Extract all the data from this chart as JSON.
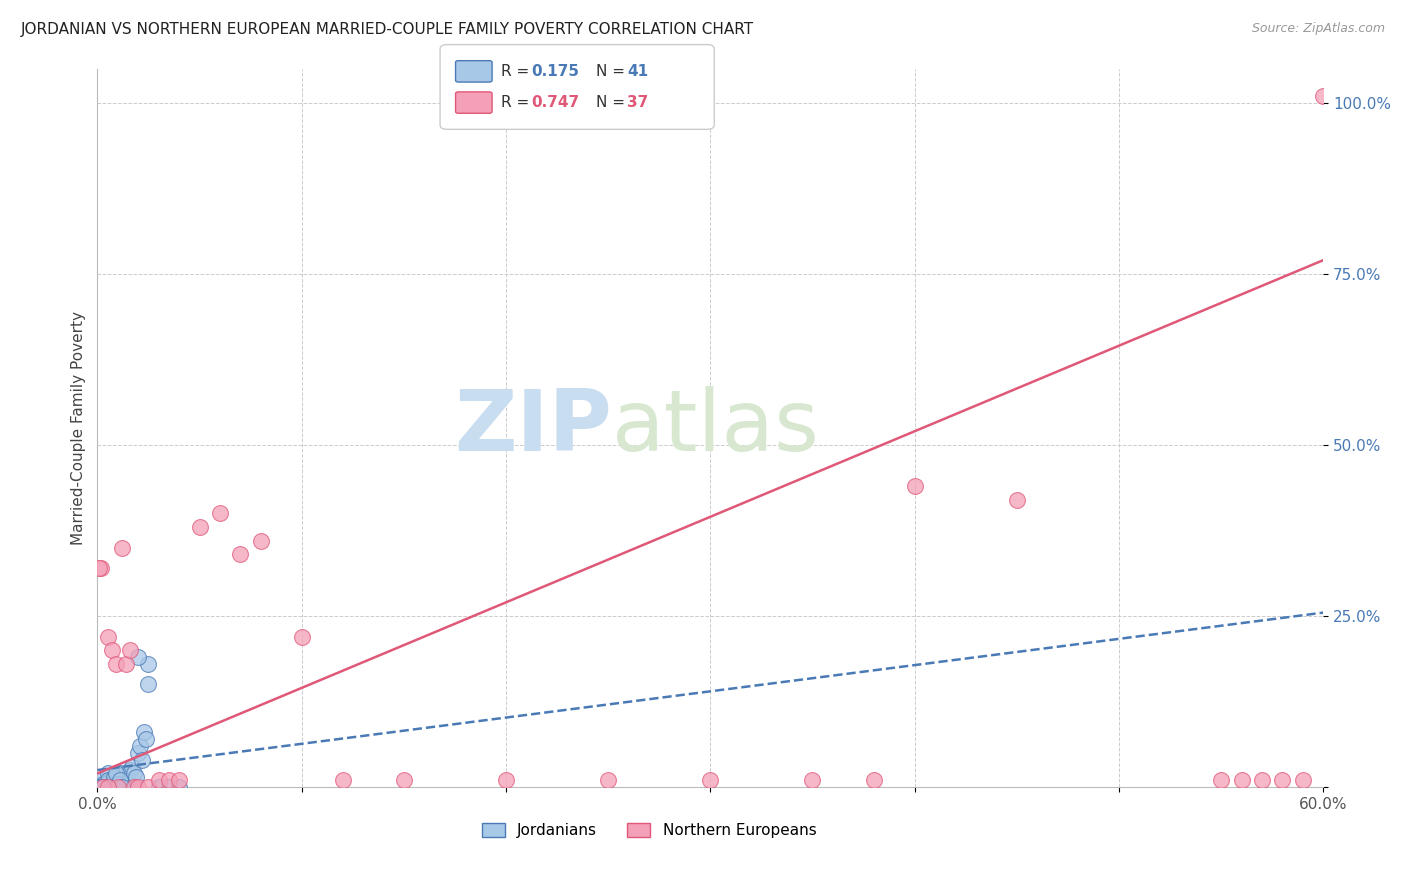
{
  "title": "JORDANIAN VS NORTHERN EUROPEAN MARRIED-COUPLE FAMILY POVERTY CORRELATION CHART",
  "source": "Source: ZipAtlas.com",
  "ylabel": "Married-Couple Family Poverty",
  "xlim": [
    0.0,
    0.6
  ],
  "ylim": [
    0.0,
    1.05
  ],
  "jordanian_R": 0.175,
  "jordanian_N": 41,
  "northern_european_R": 0.747,
  "northern_european_N": 37,
  "jordanian_color": "#a8c8e8",
  "northern_european_color": "#f4a0b8",
  "jordanian_line_color": "#4a7ab5",
  "northern_european_line_color": "#e05878",
  "watermark_zip": "ZIP",
  "watermark_atlas": "atlas",
  "background_color": "#ffffff",
  "grid_color": "#cccccc",
  "jordanian_x": [
    0.002,
    0.003,
    0.004,
    0.005,
    0.006,
    0.007,
    0.008,
    0.009,
    0.01,
    0.011,
    0.012,
    0.013,
    0.014,
    0.015,
    0.016,
    0.017,
    0.018,
    0.019,
    0.02,
    0.021,
    0.022,
    0.023,
    0.024,
    0.025,
    0.003,
    0.004,
    0.005,
    0.006,
    0.007,
    0.008,
    0.009,
    0.01,
    0.011,
    0.012,
    0.02,
    0.025,
    0.03,
    0.035,
    0.04,
    0.001,
    0.002
  ],
  "jordanian_y": [
    0.01,
    0.005,
    0.0,
    0.02,
    0.01,
    0.005,
    0.01,
    0.0,
    0.01,
    0.02,
    0.005,
    0.01,
    0.02,
    0.01,
    0.025,
    0.03,
    0.02,
    0.015,
    0.05,
    0.06,
    0.04,
    0.08,
    0.07,
    0.18,
    0.0,
    0.005,
    0.01,
    0.0,
    0.005,
    0.015,
    0.02,
    0.005,
    0.01,
    0.0,
    0.19,
    0.15,
    0.0,
    0.0,
    0.0,
    0.0,
    0.0
  ],
  "northern_european_x": [
    0.002,
    0.005,
    0.007,
    0.009,
    0.01,
    0.012,
    0.014,
    0.016,
    0.018,
    0.02,
    0.025,
    0.03,
    0.035,
    0.04,
    0.05,
    0.06,
    0.07,
    0.08,
    0.1,
    0.12,
    0.15,
    0.2,
    0.25,
    0.3,
    0.35,
    0.4,
    0.45,
    0.001,
    0.003,
    0.005,
    0.55,
    0.56,
    0.57,
    0.58,
    0.59,
    0.6,
    0.38
  ],
  "northern_european_y": [
    0.32,
    0.22,
    0.2,
    0.18,
    0.0,
    0.35,
    0.18,
    0.2,
    0.0,
    0.0,
    0.0,
    0.01,
    0.01,
    0.01,
    0.38,
    0.4,
    0.34,
    0.36,
    0.22,
    0.01,
    0.01,
    0.01,
    0.01,
    0.01,
    0.01,
    0.44,
    0.42,
    0.32,
    0.0,
    0.0,
    0.01,
    0.01,
    0.01,
    0.01,
    0.01,
    1.01,
    0.01
  ],
  "jordan_line_x0": 0.0,
  "jordan_line_x1": 0.6,
  "jordan_line_y0": 0.025,
  "jordan_line_y1": 0.255,
  "ne_line_x0": 0.0,
  "ne_line_x1": 0.6,
  "ne_line_y0": 0.02,
  "ne_line_y1": 0.77
}
